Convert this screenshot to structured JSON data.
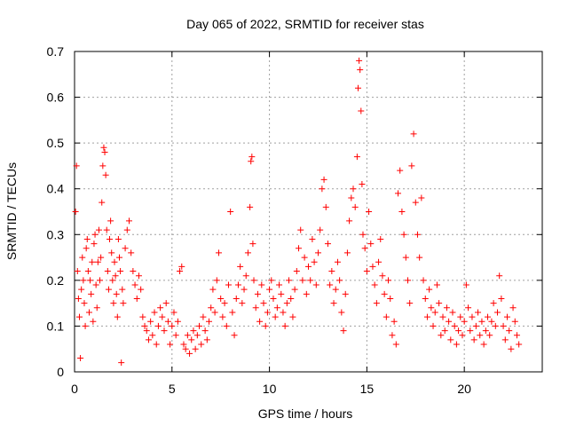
{
  "chart_data": {
    "type": "scatter",
    "title": "Day 065 of 2022, SRMTID for receiver stas",
    "xlabel": "GPS time / hours",
    "ylabel": "SRMTID / TECUs",
    "xlim": [
      0,
      24
    ],
    "ylim": [
      0,
      0.7
    ],
    "xticks": [
      0,
      5,
      10,
      15,
      20
    ],
    "yticks": [
      0,
      0.1,
      0.2,
      0.3,
      0.4,
      0.5,
      0.6,
      0.7
    ],
    "xtick_labels": [
      "0",
      "5",
      "10",
      "15",
      "20"
    ],
    "ytick_labels": [
      "0",
      "0.1",
      "0.2",
      "0.3",
      "0.4",
      "0.5",
      "0.6",
      "0.7"
    ],
    "grid": true,
    "marker": "+",
    "color": "#ff0000",
    "series": [
      {
        "name": "SRMTID",
        "points": [
          [
            0.05,
            0.35
          ],
          [
            0.1,
            0.45
          ],
          [
            0.15,
            0.22
          ],
          [
            0.2,
            0.16
          ],
          [
            0.25,
            0.12
          ],
          [
            0.3,
            0.03
          ],
          [
            0.35,
            0.18
          ],
          [
            0.4,
            0.25
          ],
          [
            0.45,
            0.2
          ],
          [
            0.5,
            0.15
          ],
          [
            0.55,
            0.1
          ],
          [
            0.6,
            0.27
          ],
          [
            0.65,
            0.29
          ],
          [
            0.7,
            0.22
          ],
          [
            0.75,
            0.13
          ],
          [
            0.8,
            0.2
          ],
          [
            0.85,
            0.17
          ],
          [
            0.9,
            0.24
          ],
          [
            0.95,
            0.11
          ],
          [
            1.0,
            0.28
          ],
          [
            1.05,
            0.3
          ],
          [
            1.1,
            0.19
          ],
          [
            1.15,
            0.14
          ],
          [
            1.2,
            0.24
          ],
          [
            1.25,
            0.31
          ],
          [
            1.3,
            0.2
          ],
          [
            1.35,
            0.25
          ],
          [
            1.4,
            0.37
          ],
          [
            1.45,
            0.45
          ],
          [
            1.5,
            0.49
          ],
          [
            1.55,
            0.48
          ],
          [
            1.6,
            0.43
          ],
          [
            1.65,
            0.31
          ],
          [
            1.7,
            0.22
          ],
          [
            1.75,
            0.18
          ],
          [
            1.8,
            0.29
          ],
          [
            1.85,
            0.33
          ],
          [
            1.9,
            0.26
          ],
          [
            1.95,
            0.2
          ],
          [
            2.0,
            0.15
          ],
          [
            2.05,
            0.24
          ],
          [
            2.1,
            0.21
          ],
          [
            2.15,
            0.17
          ],
          [
            2.2,
            0.12
          ],
          [
            2.25,
            0.29
          ],
          [
            2.3,
            0.25
          ],
          [
            2.35,
            0.22
          ],
          [
            2.4,
            0.02
          ],
          [
            2.45,
            0.18
          ],
          [
            2.5,
            0.15
          ],
          [
            2.6,
            0.27
          ],
          [
            2.7,
            0.31
          ],
          [
            2.8,
            0.33
          ],
          [
            2.9,
            0.26
          ],
          [
            3.0,
            0.22
          ],
          [
            3.1,
            0.19
          ],
          [
            3.2,
            0.16
          ],
          [
            3.3,
            0.21
          ],
          [
            3.4,
            0.18
          ],
          [
            3.5,
            0.12
          ],
          [
            3.6,
            0.1
          ],
          [
            3.7,
            0.09
          ],
          [
            3.8,
            0.07
          ],
          [
            3.9,
            0.11
          ],
          [
            4.0,
            0.08
          ],
          [
            4.1,
            0.13
          ],
          [
            4.2,
            0.06
          ],
          [
            4.3,
            0.1
          ],
          [
            4.4,
            0.14
          ],
          [
            4.5,
            0.12
          ],
          [
            4.6,
            0.09
          ],
          [
            4.7,
            0.15
          ],
          [
            4.8,
            0.11
          ],
          [
            4.9,
            0.06
          ],
          [
            5.0,
            0.1
          ],
          [
            5.1,
            0.13
          ],
          [
            5.2,
            0.08
          ],
          [
            5.3,
            0.11
          ],
          [
            5.4,
            0.22
          ],
          [
            5.5,
            0.23
          ],
          [
            5.6,
            0.06
          ],
          [
            5.7,
            0.05
          ],
          [
            5.8,
            0.08
          ],
          [
            5.9,
            0.04
          ],
          [
            6.0,
            0.07
          ],
          [
            6.1,
            0.09
          ],
          [
            6.2,
            0.05
          ],
          [
            6.3,
            0.08
          ],
          [
            6.4,
            0.1
          ],
          [
            6.5,
            0.06
          ],
          [
            6.6,
            0.12
          ],
          [
            6.7,
            0.09
          ],
          [
            6.8,
            0.07
          ],
          [
            6.9,
            0.11
          ],
          [
            7.0,
            0.14
          ],
          [
            7.1,
            0.18
          ],
          [
            7.2,
            0.13
          ],
          [
            7.3,
            0.2
          ],
          [
            7.4,
            0.26
          ],
          [
            7.5,
            0.16
          ],
          [
            7.6,
            0.12
          ],
          [
            7.7,
            0.15
          ],
          [
            7.8,
            0.1
          ],
          [
            7.9,
            0.19
          ],
          [
            8.0,
            0.35
          ],
          [
            8.1,
            0.13
          ],
          [
            8.2,
            0.08
          ],
          [
            8.3,
            0.16
          ],
          [
            8.4,
            0.19
          ],
          [
            8.5,
            0.23
          ],
          [
            8.6,
            0.15
          ],
          [
            8.7,
            0.18
          ],
          [
            8.8,
            0.21
          ],
          [
            8.9,
            0.26
          ],
          [
            9.0,
            0.36
          ],
          [
            9.05,
            0.46
          ],
          [
            9.1,
            0.47
          ],
          [
            9.15,
            0.28
          ],
          [
            9.2,
            0.2
          ],
          [
            9.3,
            0.14
          ],
          [
            9.4,
            0.17
          ],
          [
            9.5,
            0.11
          ],
          [
            9.6,
            0.19
          ],
          [
            9.7,
            0.15
          ],
          [
            9.8,
            0.1
          ],
          [
            9.9,
            0.13
          ],
          [
            10.0,
            0.18
          ],
          [
            10.1,
            0.2
          ],
          [
            10.2,
            0.16
          ],
          [
            10.3,
            0.12
          ],
          [
            10.4,
            0.14
          ],
          [
            10.5,
            0.19
          ],
          [
            10.6,
            0.17
          ],
          [
            10.7,
            0.13
          ],
          [
            10.8,
            0.1
          ],
          [
            10.9,
            0.15
          ],
          [
            11.0,
            0.2
          ],
          [
            11.1,
            0.16
          ],
          [
            11.2,
            0.12
          ],
          [
            11.3,
            0.18
          ],
          [
            11.4,
            0.22
          ],
          [
            11.5,
            0.27
          ],
          [
            11.6,
            0.31
          ],
          [
            11.7,
            0.2
          ],
          [
            11.8,
            0.25
          ],
          [
            11.9,
            0.17
          ],
          [
            12.0,
            0.23
          ],
          [
            12.1,
            0.2
          ],
          [
            12.2,
            0.29
          ],
          [
            12.3,
            0.24
          ],
          [
            12.4,
            0.19
          ],
          [
            12.5,
            0.26
          ],
          [
            12.6,
            0.31
          ],
          [
            12.7,
            0.4
          ],
          [
            12.8,
            0.42
          ],
          [
            12.9,
            0.36
          ],
          [
            13.0,
            0.28
          ],
          [
            13.1,
            0.19
          ],
          [
            13.2,
            0.22
          ],
          [
            13.3,
            0.15
          ],
          [
            13.4,
            0.18
          ],
          [
            13.5,
            0.24
          ],
          [
            13.6,
            0.2
          ],
          [
            13.7,
            0.13
          ],
          [
            13.8,
            0.09
          ],
          [
            13.9,
            0.17
          ],
          [
            14.0,
            0.26
          ],
          [
            14.1,
            0.33
          ],
          [
            14.2,
            0.38
          ],
          [
            14.3,
            0.4
          ],
          [
            14.4,
            0.36
          ],
          [
            14.5,
            0.47
          ],
          [
            14.55,
            0.62
          ],
          [
            14.6,
            0.68
          ],
          [
            14.65,
            0.66
          ],
          [
            14.7,
            0.57
          ],
          [
            14.75,
            0.41
          ],
          [
            14.8,
            0.3
          ],
          [
            14.9,
            0.27
          ],
          [
            15.0,
            0.22
          ],
          [
            15.1,
            0.35
          ],
          [
            15.2,
            0.28
          ],
          [
            15.3,
            0.23
          ],
          [
            15.4,
            0.19
          ],
          [
            15.5,
            0.15
          ],
          [
            15.6,
            0.24
          ],
          [
            15.7,
            0.29
          ],
          [
            15.8,
            0.21
          ],
          [
            15.9,
            0.17
          ],
          [
            16.0,
            0.12
          ],
          [
            16.1,
            0.2
          ],
          [
            16.2,
            0.16
          ],
          [
            16.3,
            0.08
          ],
          [
            16.4,
            0.11
          ],
          [
            16.5,
            0.06
          ],
          [
            16.6,
            0.39
          ],
          [
            16.7,
            0.44
          ],
          [
            16.8,
            0.35
          ],
          [
            16.9,
            0.3
          ],
          [
            17.0,
            0.25
          ],
          [
            17.1,
            0.2
          ],
          [
            17.2,
            0.15
          ],
          [
            17.3,
            0.45
          ],
          [
            17.4,
            0.52
          ],
          [
            17.5,
            0.37
          ],
          [
            17.6,
            0.3
          ],
          [
            17.7,
            0.25
          ],
          [
            17.8,
            0.38
          ],
          [
            17.9,
            0.2
          ],
          [
            18.0,
            0.16
          ],
          [
            18.1,
            0.12
          ],
          [
            18.2,
            0.18
          ],
          [
            18.3,
            0.14
          ],
          [
            18.4,
            0.1
          ],
          [
            18.5,
            0.13
          ],
          [
            18.6,
            0.19
          ],
          [
            18.7,
            0.15
          ],
          [
            18.8,
            0.08
          ],
          [
            18.9,
            0.12
          ],
          [
            19.0,
            0.09
          ],
          [
            19.1,
            0.14
          ],
          [
            19.2,
            0.11
          ],
          [
            19.3,
            0.07
          ],
          [
            19.4,
            0.13
          ],
          [
            19.5,
            0.1
          ],
          [
            19.6,
            0.06
          ],
          [
            19.7,
            0.09
          ],
          [
            19.8,
            0.12
          ],
          [
            19.9,
            0.08
          ],
          [
            20.0,
            0.11
          ],
          [
            20.1,
            0.19
          ],
          [
            20.2,
            0.14
          ],
          [
            20.3,
            0.09
          ],
          [
            20.4,
            0.12
          ],
          [
            20.5,
            0.07
          ],
          [
            20.6,
            0.1
          ],
          [
            20.7,
            0.13
          ],
          [
            20.8,
            0.08
          ],
          [
            20.9,
            0.11
          ],
          [
            21.0,
            0.06
          ],
          [
            21.1,
            0.09
          ],
          [
            21.2,
            0.12
          ],
          [
            21.3,
            0.08
          ],
          [
            21.4,
            0.11
          ],
          [
            21.5,
            0.15
          ],
          [
            21.6,
            0.1
          ],
          [
            21.7,
            0.13
          ],
          [
            21.8,
            0.21
          ],
          [
            21.9,
            0.16
          ],
          [
            22.0,
            0.1
          ],
          [
            22.1,
            0.07
          ],
          [
            22.2,
            0.12
          ],
          [
            22.3,
            0.09
          ],
          [
            22.4,
            0.05
          ],
          [
            22.5,
            0.14
          ],
          [
            22.6,
            0.11
          ],
          [
            22.7,
            0.08
          ],
          [
            22.8,
            0.06
          ]
        ]
      }
    ]
  }
}
